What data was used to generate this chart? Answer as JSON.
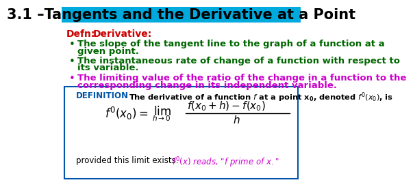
{
  "title": "3.1 –Tangents and the Derivative at a Point",
  "title_bg": "#00AADD",
  "title_color": "black",
  "title_fontsize": 15,
  "bg_color": "white",
  "defn_label_color": "#CC0000",
  "defn_word_color": "#CC0000",
  "bullet1_color": "#006600",
  "bullet2_color": "#006600",
  "bullet3_color": "#CC00CC",
  "bullet1_line1": "The slope of the tangent line to the graph of a function at a",
  "bullet1_line2": "given point.",
  "bullet2_line1": "The instantaneous rate of change of a function with respect to",
  "bullet2_line2": "its variable.",
  "bullet3_line1": "The limiting value of the ratio of the change in a function to the",
  "bullet3_line2": "corresponding change in its independent variable.",
  "box_border_color": "#0055AA",
  "definition_label_color": "#0055AA",
  "definition_text_color": "black",
  "provided_text_color": "black",
  "prime_reads_color": "#CC00CC"
}
